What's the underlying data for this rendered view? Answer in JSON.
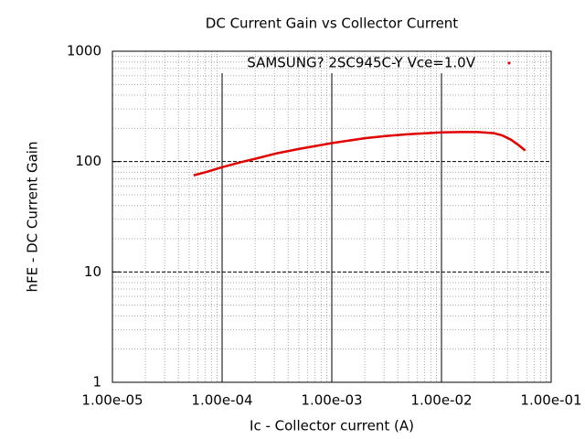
{
  "chart_data": {
    "type": "line",
    "title": "DC Current Gain vs Collector Current",
    "x_label": "Ic - Collector current (A)",
    "y_label": "hFE - DC Current Gain",
    "x": [
      5.5e-05,
      7e-05,
      0.0001,
      0.00015,
      0.0002,
      0.000316,
      0.0005,
      0.001,
      0.002,
      0.00316,
      0.005,
      0.01,
      0.015,
      0.0215,
      0.03,
      0.036,
      0.043,
      0.05,
      0.058
    ],
    "series": [
      {
        "name": "SAMSUNG? 2SC945C-Y Vce=1.0V",
        "color": "#e00000",
        "values": [
          75,
          80,
          89,
          99,
          106,
          119,
          130,
          147,
          163,
          171,
          177,
          184,
          185,
          185,
          181,
          172,
          158,
          142,
          126
        ]
      }
    ],
    "xlim": [
      1e-05,
      0.1
    ],
    "ylim": [
      1,
      1000
    ],
    "log_x": true,
    "log_y": true,
    "grid": true,
    "legend": "top-right",
    "xticks": [
      {
        "value": 1e-05,
        "label": "1.00e-05"
      },
      {
        "value": 0.0001,
        "label": "1.00e-04"
      },
      {
        "value": 0.001,
        "label": "1.00e-03"
      },
      {
        "value": 0.01,
        "label": "1.00e-02"
      },
      {
        "value": 0.1,
        "label": "1.00e-01"
      }
    ],
    "yticks": [
      1,
      10,
      100,
      1000
    ]
  }
}
